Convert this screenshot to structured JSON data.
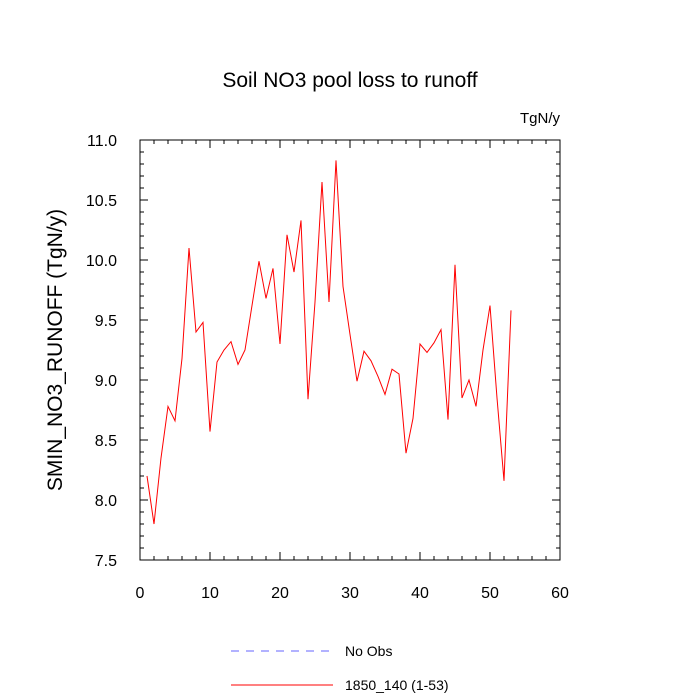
{
  "chart_data": {
    "type": "line",
    "title": "Soil NO3 pool loss to runoff",
    "units": "TgN/y",
    "ylabel": "SMIN_NO3_RUNOFF  (TgN/y)",
    "xlabel": "",
    "xlim": [
      0,
      60
    ],
    "ylim": [
      7.5,
      11.0
    ],
    "xticks": [
      0,
      10,
      20,
      30,
      40,
      50,
      60
    ],
    "xtick_labels": [
      "0",
      "10",
      "20",
      "30",
      "40",
      "50",
      "60"
    ],
    "yticks": [
      7.5,
      8.0,
      8.5,
      9.0,
      9.5,
      10.0,
      10.5,
      11.0
    ],
    "ytick_labels": [
      "7.5",
      "8.0",
      "8.5",
      "9.0",
      "9.5",
      "10.0",
      "10.5",
      "11.0"
    ],
    "grid": false,
    "legend_position": "bottom",
    "series": [
      {
        "name": "No Obs",
        "color": "#6666ff",
        "dash": "dashed",
        "values": []
      },
      {
        "name": "1850_140 (1-53)",
        "color": "#ff0000",
        "dash": "solid",
        "x": [
          1,
          2,
          3,
          4,
          5,
          6,
          7,
          8,
          9,
          10,
          11,
          12,
          13,
          14,
          15,
          16,
          17,
          18,
          19,
          20,
          21,
          22,
          23,
          24,
          25,
          26,
          27,
          28,
          29,
          30,
          31,
          32,
          33,
          34,
          35,
          36,
          37,
          38,
          39,
          40,
          41,
          42,
          43,
          44,
          45,
          46,
          47,
          48,
          49,
          50,
          51,
          52,
          53
        ],
        "values": [
          8.2,
          7.8,
          8.35,
          8.78,
          8.66,
          9.18,
          10.1,
          9.4,
          9.48,
          8.57,
          9.15,
          9.25,
          9.32,
          9.13,
          9.25,
          9.62,
          9.99,
          9.68,
          9.93,
          9.3,
          10.21,
          9.9,
          10.33,
          8.84,
          9.65,
          10.65,
          9.65,
          10.83,
          9.78,
          9.38,
          8.99,
          9.24,
          9.16,
          9.03,
          8.88,
          9.09,
          9.05,
          8.39,
          8.68,
          9.3,
          9.23,
          9.31,
          9.42,
          8.67,
          9.96,
          8.85,
          9.0,
          8.78,
          9.25,
          9.62,
          8.85,
          8.16,
          9.58
        ]
      }
    ]
  }
}
